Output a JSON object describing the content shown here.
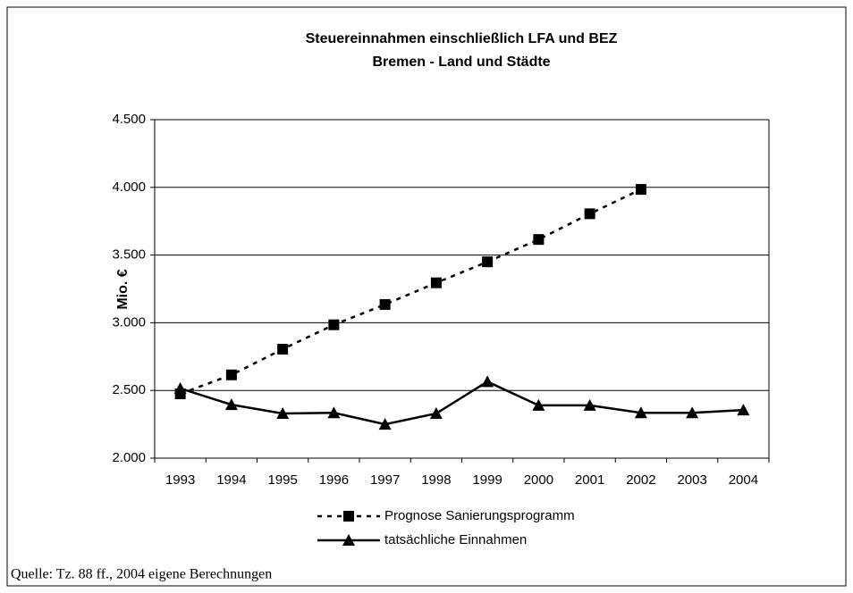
{
  "chart_data": {
    "type": "line",
    "title": "Steuereinnahmen einschließlich LFA und BEZ",
    "subtitle": "Bremen - Land und Städte",
    "y_label": "Mio. €",
    "source": "Quelle: Tz. 88 ff., 2004 eigene Berechnungen",
    "categories": [
      "1993",
      "1994",
      "1995",
      "1996",
      "1997",
      "1998",
      "1999",
      "2000",
      "2001",
      "2002",
      "2003",
      "2004"
    ],
    "series": [
      {
        "name": "Prognose Sanierungsprogramm",
        "color": "#000000",
        "line_style": "dashed",
        "marker": "square",
        "values": [
          2475,
          2615,
          2805,
          2985,
          3135,
          3295,
          3450,
          3615,
          3805,
          3985,
          null,
          null
        ]
      },
      {
        "name": "tatsächliche Einnahmen",
        "color": "#000000",
        "line_style": "solid",
        "marker": "triangle",
        "values": [
          2515,
          2395,
          2330,
          2335,
          2250,
          2330,
          2565,
          2390,
          2390,
          2335,
          2335,
          2355
        ]
      }
    ],
    "ylim": [
      2000,
      4500
    ],
    "yticks": [
      {
        "value": 2000,
        "label": "2.000"
      },
      {
        "value": 2500,
        "label": "2.500"
      },
      {
        "value": 3000,
        "label": "3.000"
      },
      {
        "value": 3500,
        "label": "3.500"
      },
      {
        "value": 4000,
        "label": "4.000"
      },
      {
        "value": 4500,
        "label": "4.500"
      }
    ],
    "grid": true
  }
}
